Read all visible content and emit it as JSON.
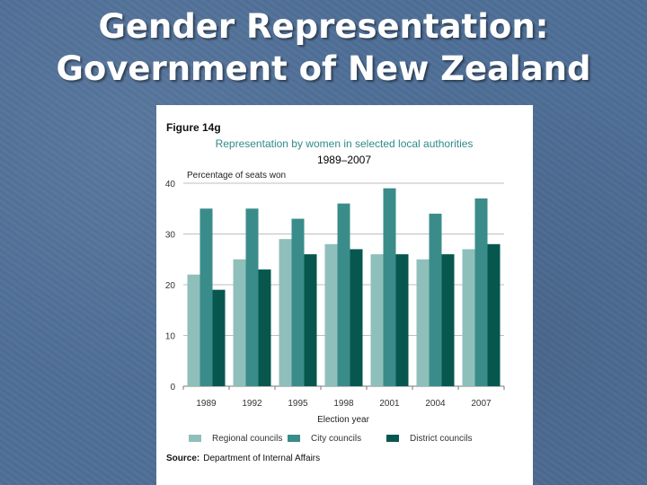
{
  "slide": {
    "title_line1": "Gender Representation:",
    "title_line2": "Government of New Zealand"
  },
  "figure": {
    "label": "Figure 14g",
    "source_label": "Source:",
    "source_text": "Department of Internal Affairs"
  },
  "colors": {
    "regional": "#8fbfba",
    "city": "#3a8c8a",
    "district": "#07574f",
    "title_teal": "#2f8a88",
    "gridline": "#bfbfbf"
  },
  "chart_data": {
    "type": "bar",
    "title": "Representation by women in selected local authorities",
    "subtitle": "1989–2007",
    "ylabel": "Percentage of seats won",
    "xlabel": "Election year",
    "ylim": [
      0,
      40
    ],
    "yticks": [
      0,
      10,
      20,
      30,
      40
    ],
    "grid": true,
    "legend": "bottom",
    "categories": [
      "1989",
      "1992",
      "1995",
      "1998",
      "2001",
      "2004",
      "2007"
    ],
    "series": [
      {
        "name": "Regional councils",
        "values": [
          22,
          25,
          29,
          28,
          26,
          25,
          27
        ]
      },
      {
        "name": "City councils",
        "values": [
          35,
          35,
          33,
          36,
          39,
          34,
          37
        ]
      },
      {
        "name": "District councils",
        "values": [
          19,
          23,
          26,
          27,
          26,
          26,
          28
        ]
      }
    ]
  }
}
